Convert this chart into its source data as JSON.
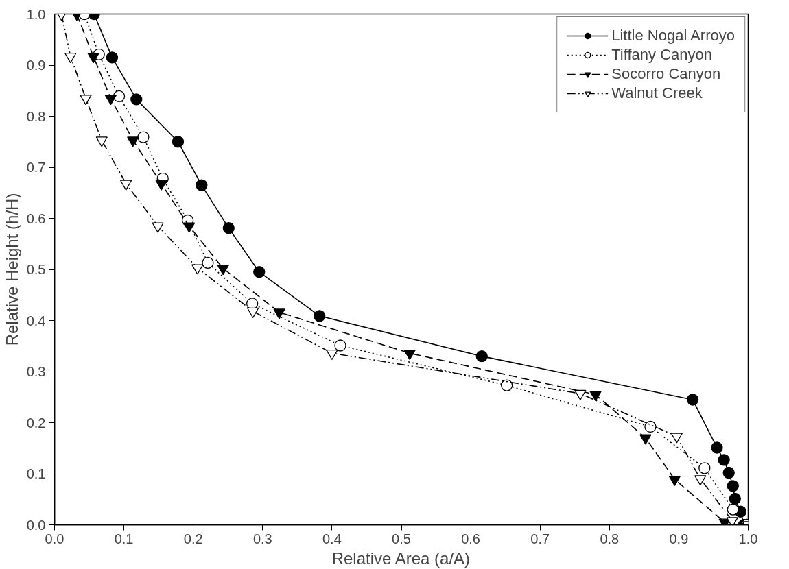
{
  "chart_data": {
    "type": "line",
    "xlabel": "Relative Area (a/A)",
    "ylabel": "Relative Height (h/H)",
    "xlim": [
      0,
      1
    ],
    "ylim": [
      0,
      1
    ],
    "xticks": [
      {
        "value": 0,
        "label": "0.0"
      },
      0.1,
      0.2,
      0.3,
      0.4,
      0.5,
      0.6,
      0.7,
      0.8,
      0.9,
      {
        "value": 1,
        "label": "1.0"
      }
    ],
    "yticks": [
      {
        "value": 0,
        "label": "0.0"
      },
      0.1,
      0.2,
      0.3,
      0.4,
      0.5,
      0.6,
      0.7,
      0.8,
      0.9,
      {
        "value": 1,
        "label": "1.0"
      }
    ],
    "grid": false,
    "legend": "top right",
    "series": [
      {
        "name": "Little Nogal Arroyo",
        "color": "#000000",
        "marker": "circle",
        "line_style": "solid",
        "x": [
          0.057,
          0.083,
          0.118,
          0.178,
          0.212,
          0.251,
          0.295,
          0.382,
          0.616,
          0.92,
          0.955,
          0.965,
          0.972,
          0.978,
          0.981,
          0.989,
          0.994
        ],
        "values": [
          1.0,
          0.915,
          0.833,
          0.75,
          0.665,
          0.581,
          0.495,
          0.409,
          0.33,
          0.245,
          0.151,
          0.127,
          0.102,
          0.076,
          0.051,
          0.026,
          0.0
        ]
      },
      {
        "name": "Tiffany Canyon",
        "color": "#ffffff",
        "marker": "circle",
        "line_style": "dotted",
        "x": [
          0.043,
          0.064,
          0.093,
          0.128,
          0.156,
          0.192,
          0.221,
          0.285,
          0.412,
          0.652,
          0.859,
          0.937,
          0.978,
          0.998
        ],
        "values": [
          1.0,
          0.921,
          0.839,
          0.759,
          0.678,
          0.596,
          0.513,
          0.433,
          0.351,
          0.273,
          0.192,
          0.111,
          0.03,
          0.0
        ]
      },
      {
        "name": "Socorro Canyon",
        "color": "#000000",
        "marker": "triangle",
        "line_style": "dashed",
        "x": [
          0.032,
          0.056,
          0.081,
          0.113,
          0.154,
          0.194,
          0.243,
          0.324,
          0.512,
          0.78,
          0.852,
          0.894,
          0.966
        ],
        "values": [
          1.0,
          0.917,
          0.835,
          0.753,
          0.668,
          0.585,
          0.502,
          0.416,
          0.336,
          0.255,
          0.17,
          0.089,
          0.005
        ]
      },
      {
        "name": "Walnut Creek",
        "color": "#ffffff",
        "marker": "triangle",
        "line_style": "dashdot",
        "x": [
          0.01,
          0.023,
          0.045,
          0.068,
          0.103,
          0.149,
          0.206,
          0.286,
          0.4,
          0.758,
          0.897,
          0.931,
          0.977,
          1.0
        ],
        "values": [
          1.0,
          0.917,
          0.835,
          0.753,
          0.668,
          0.585,
          0.503,
          0.418,
          0.336,
          0.257,
          0.173,
          0.09,
          0.008,
          0.0
        ]
      }
    ]
  }
}
